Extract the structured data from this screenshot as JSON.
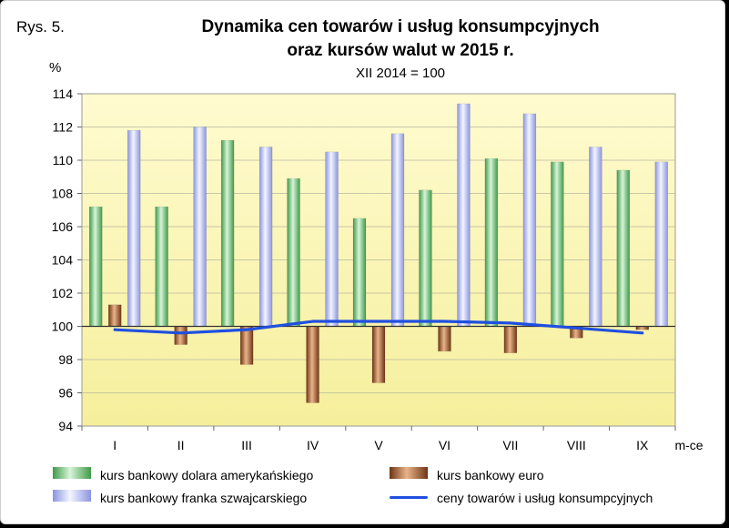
{
  "figure_label": "Rys. 5.",
  "title_line1": "Dynamika cen towarów i usług konsumpcyjnych",
  "title_line2": "oraz kursów walut w 2015 r.",
  "subtitle": "XII 2014 = 100",
  "unit": "%",
  "colors": {
    "plot_bg_top": "#fff8c0",
    "plot_bg_bottom": "#f7f2a0",
    "usd": "#7fd07f",
    "eur": "#a0582c",
    "chf": "#b8c0f0",
    "cpi": "#1f4fe0"
  },
  "chart_data": {
    "type": "bar",
    "categories": [
      "I",
      "II",
      "III",
      "IV",
      "V",
      "VI",
      "VII",
      "VIII",
      "IX"
    ],
    "xlabel": "m-ce",
    "ylabel": "%",
    "ylim": [
      94,
      114
    ],
    "yticks": [
      94,
      96,
      98,
      100,
      102,
      104,
      106,
      108,
      110,
      112,
      114
    ],
    "baseline": 100,
    "grid": true,
    "legend_position": "bottom",
    "series": [
      {
        "name": "kurs bankowy dolara amerykańskiego",
        "kind": "bar",
        "color": "#7fd07f",
        "values": [
          107.2,
          107.2,
          111.2,
          108.9,
          106.5,
          108.2,
          110.1,
          109.9,
          109.4
        ]
      },
      {
        "name": "kurs bankowy euro",
        "kind": "bar",
        "color": "#a0582c",
        "values": [
          101.3,
          98.9,
          97.7,
          95.4,
          96.6,
          98.5,
          98.4,
          99.3,
          99.8
        ]
      },
      {
        "name": "kurs bankowy franka szwajcarskiego",
        "kind": "bar",
        "color": "#b8c0f0",
        "values": [
          111.8,
          112.0,
          110.8,
          110.5,
          111.6,
          113.4,
          112.8,
          110.8,
          109.9
        ]
      },
      {
        "name": "ceny towarów i usług konsumpcyjnych",
        "kind": "line",
        "color": "#1f4fe0",
        "values": [
          99.8,
          99.6,
          99.8,
          100.3,
          100.3,
          100.3,
          100.2,
          99.9,
          99.6
        ]
      }
    ]
  }
}
